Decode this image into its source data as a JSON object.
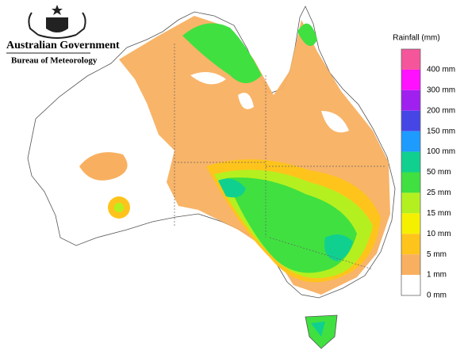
{
  "header": {
    "org": "Australian Government",
    "agency": "Bureau of Meteorology"
  },
  "legend": {
    "title": "Rainfall (mm)",
    "bands": [
      "#f5559b",
      "#ff10ff",
      "#a020f0",
      "#4646e6",
      "#1e9bff",
      "#10d090",
      "#40e040",
      "#b4f020",
      "#f5f000",
      "#ffc41c",
      "#f8b060",
      "#ffffff"
    ],
    "labels": [
      "400 mm",
      "300 mm",
      "200 mm",
      "150 mm",
      "100 mm",
      "50 mm",
      "25 mm",
      "15 mm",
      "10 mm",
      "5 mm",
      "1 mm",
      "0 mm"
    ]
  }
}
